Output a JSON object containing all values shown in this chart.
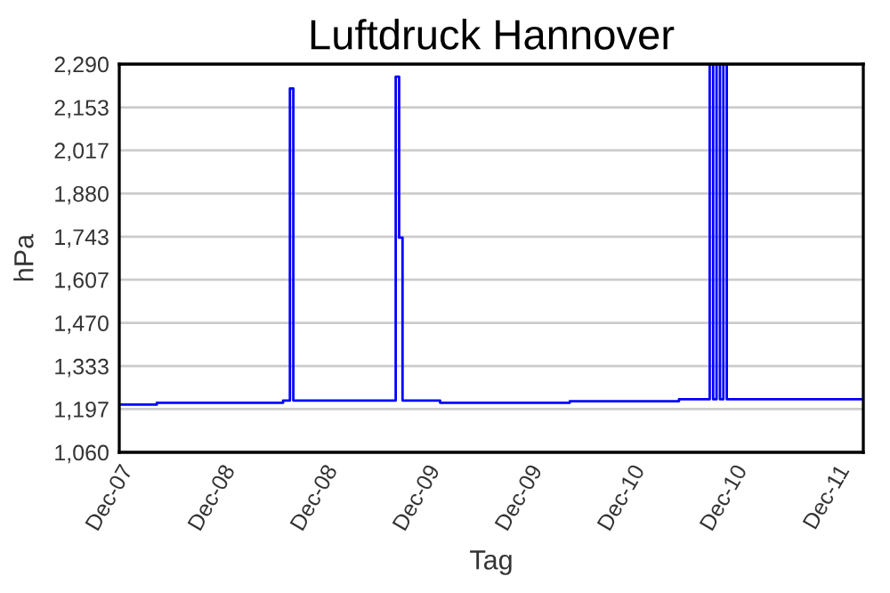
{
  "chart_data": {
    "type": "step",
    "title": "Luftdruck Hannover",
    "xlabel": "Tag",
    "ylabel": "hPa",
    "categories": [
      "Dec-07",
      null,
      null,
      null,
      null,
      null,
      null,
      null,
      null,
      null,
      null,
      null,
      null,
      null,
      null,
      null,
      null,
      null,
      null,
      null,
      null,
      null,
      null,
      null,
      null,
      null,
      null,
      null,
      null,
      null,
      "Dec-08",
      null,
      null,
      null,
      null,
      null,
      null,
      null,
      null,
      null,
      null,
      null,
      null,
      null,
      null,
      null,
      null,
      null,
      null,
      null,
      null,
      null,
      null,
      null,
      null,
      null,
      null,
      null,
      null,
      null,
      "Dec-08",
      null,
      null,
      null,
      null,
      null,
      null,
      null,
      null,
      null,
      null,
      null,
      null,
      null,
      null,
      null,
      null,
      null,
      null,
      null,
      null,
      null,
      null,
      null,
      null,
      null,
      null,
      null,
      null,
      null,
      "Dec-09",
      null,
      null,
      null,
      null,
      null,
      null,
      null,
      null,
      null,
      null,
      null,
      null,
      null,
      null,
      null,
      null,
      null,
      null,
      null,
      null,
      null,
      null,
      null,
      null,
      null,
      null,
      null,
      null,
      null,
      "Dec-09",
      null,
      null,
      null,
      null,
      null,
      null,
      null,
      null,
      null,
      null,
      null,
      null,
      null,
      null,
      null,
      null,
      null,
      null,
      null,
      null,
      null,
      null,
      null,
      null,
      null,
      null,
      null,
      null,
      null,
      "Dec-10",
      null,
      null,
      null,
      null,
      null,
      null,
      null,
      null,
      null,
      null,
      null,
      null,
      null,
      null,
      null,
      null,
      null,
      null,
      null,
      null,
      null,
      null,
      null,
      null,
      null,
      null,
      null,
      null,
      null,
      "Dec-10",
      null,
      null,
      null,
      null,
      null,
      null,
      null,
      null,
      null,
      null,
      null,
      null,
      null,
      null,
      null,
      null,
      null,
      null,
      null,
      null,
      null,
      null,
      null,
      null,
      null,
      null,
      null,
      null,
      null,
      "Dec-11",
      null,
      null,
      null,
      null,
      null,
      null,
      null,
      null
    ],
    "ylim": [
      1060,
      2290
    ],
    "yticks": [
      {
        "value": 1060,
        "label": "1,060"
      },
      {
        "value": 1197,
        "label": "1,197"
      },
      {
        "value": 1333,
        "label": "1,333"
      },
      {
        "value": 1470,
        "label": "1,470"
      },
      {
        "value": 1607,
        "label": "1,607"
      },
      {
        "value": 1743,
        "label": "1,743"
      },
      {
        "value": 1880,
        "label": "1,880"
      },
      {
        "value": 2017,
        "label": "2,017"
      },
      {
        "value": 2153,
        "label": "2,153"
      },
      {
        "value": 2290,
        "label": "2,290"
      }
    ],
    "grid": "y",
    "series": [
      {
        "color": "#0000ff",
        "values": [
          1211,
          1211,
          1211,
          1211,
          1211,
          1211,
          1211,
          1211,
          1211,
          1211,
          1211,
          1217,
          1217,
          1217,
          1217,
          1217,
          1217,
          1217,
          1217,
          1217,
          1217,
          1217,
          1217,
          1217,
          1217,
          1217,
          1217,
          1217,
          1217,
          1217,
          1217,
          1217,
          1217,
          1217,
          1217,
          1217,
          1217,
          1217,
          1217,
          1217,
          1217,
          1217,
          1217,
          1217,
          1217,
          1217,
          1217,
          1217,
          1224,
          1224,
          2213,
          1224,
          1224,
          1224,
          1224,
          1224,
          1224,
          1224,
          1224,
          1224,
          1224,
          1224,
          1224,
          1224,
          1224,
          1224,
          1224,
          1224,
          1224,
          1224,
          1224,
          1224,
          1224,
          1224,
          1224,
          1224,
          1224,
          1224,
          1224,
          1224,
          1224,
          2250,
          1740,
          1224,
          1224,
          1224,
          1224,
          1224,
          1224,
          1224,
          1224,
          1224,
          1224,
          1224,
          1217,
          1217,
          1217,
          1217,
          1217,
          1217,
          1217,
          1217,
          1217,
          1217,
          1217,
          1217,
          1217,
          1217,
          1217,
          1217,
          1217,
          1217,
          1217,
          1217,
          1217,
          1217,
          1217,
          1217,
          1217,
          1217,
          1217,
          1217,
          1217,
          1217,
          1217,
          1217,
          1217,
          1217,
          1217,
          1217,
          1217,
          1217,
          1222,
          1222,
          1222,
          1222,
          1222,
          1222,
          1222,
          1222,
          1222,
          1222,
          1222,
          1222,
          1222,
          1222,
          1222,
          1222,
          1222,
          1222,
          1222,
          1222,
          1222,
          1222,
          1222,
          1222,
          1222,
          1222,
          1222,
          1222,
          1222,
          1222,
          1222,
          1222,
          1228,
          1228,
          1228,
          1228,
          1228,
          1228,
          1228,
          1228,
          1228,
          2290,
          1228,
          2290,
          1228,
          2290,
          1228,
          1228,
          1228,
          1228,
          1228,
          1228,
          1228,
          1228,
          1228,
          1228,
          1228,
          1228,
          1228,
          1228,
          1228,
          1228,
          1228,
          1228,
          1228,
          1228,
          1228,
          1228,
          1228,
          1228,
          1228,
          1228,
          1228,
          1228,
          1228,
          1228,
          1228,
          1228,
          1228,
          1228,
          1228,
          1228,
          1228,
          1228,
          1228,
          1228,
          1228
        ]
      }
    ]
  }
}
